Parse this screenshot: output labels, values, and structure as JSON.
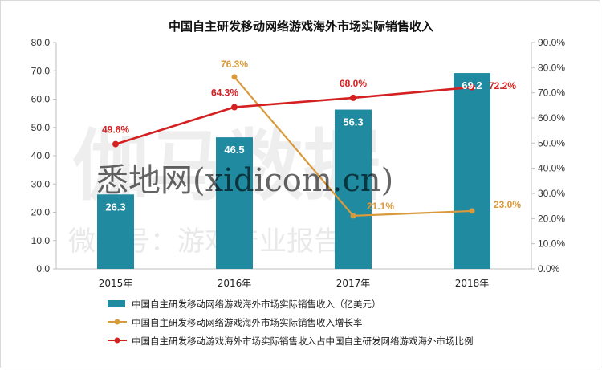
{
  "watermarks": {
    "main": "伽马数据",
    "site": "悉地网(xidicom.cn)",
    "sub": "微信号：游戏产业报告"
  },
  "colors": {
    "bar": "#1f8aa0",
    "growth": "#d89a3c",
    "share": "#d42020"
  },
  "chart_data": {
    "type": "bar",
    "title": "中国自主研发移动网络游戏海外市场实际销售收入",
    "categories": [
      "2015年",
      "2016年",
      "2017年",
      "2018年"
    ],
    "ylim": [
      0,
      80
    ],
    "y2lim": [
      0,
      90
    ],
    "yticks": [
      "0.0",
      "10.0",
      "20.0",
      "30.0",
      "40.0",
      "50.0",
      "60.0",
      "70.0",
      "80.0"
    ],
    "y2ticks": [
      "0.0%",
      "10.0%",
      "20.0%",
      "30.0%",
      "40.0%",
      "50.0%",
      "60.0%",
      "70.0%",
      "80.0%",
      "90.0%"
    ],
    "series": [
      {
        "name": "中国自主研发移动网络游戏海外市场实际销售收入（亿美元）",
        "kind": "bar",
        "axis": "left",
        "values": [
          26.3,
          46.5,
          56.3,
          69.2
        ],
        "labels": [
          "26.3",
          "46.5",
          "56.3",
          "69.2"
        ]
      },
      {
        "name": "中国自主研发移动网络游戏海外市场实际销售收入增长率",
        "kind": "line",
        "axis": "right",
        "x": [
          "2016年",
          "2017年",
          "2018年"
        ],
        "values": [
          76.3,
          21.1,
          23.0
        ],
        "labels": [
          "76.3%",
          "21.1%",
          "23.0%"
        ]
      },
      {
        "name": "中国自主研发移动游戏海外市场实际销售收入占中国自主研发网络游戏海外市场比例",
        "kind": "line",
        "axis": "right",
        "values": [
          49.6,
          64.3,
          68.0,
          72.2
        ],
        "labels": [
          "49.6%",
          "64.3%",
          "68.0%",
          "72.2%"
        ]
      }
    ],
    "legend_position": "bottom-left",
    "grid": false
  }
}
